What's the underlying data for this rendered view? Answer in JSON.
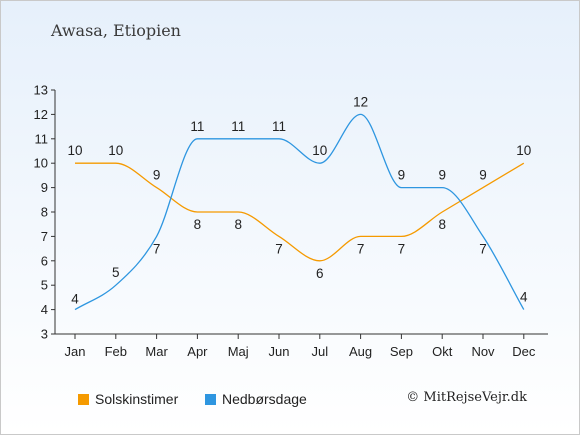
{
  "title": "Awasa, Etiopien",
  "copyright": "© MitRejseVejr.dk",
  "chart_data": {
    "type": "line",
    "categories": [
      "Jan",
      "Feb",
      "Mar",
      "Apr",
      "Maj",
      "Jun",
      "Jul",
      "Aug",
      "Sep",
      "Okt",
      "Nov",
      "Dec"
    ],
    "ylim": [
      3,
      13
    ],
    "yticks": [
      3,
      4,
      5,
      6,
      7,
      8,
      9,
      10,
      11,
      12,
      13
    ],
    "series": [
      {
        "name": "Solskinstimer",
        "color": "#f59a00",
        "values": [
          10,
          10,
          9,
          8,
          8,
          7,
          6,
          7,
          7,
          8,
          9,
          10
        ]
      },
      {
        "name": "Nedbørsdage",
        "color": "#2e96e0",
        "values": [
          4,
          5,
          7,
          11,
          11,
          11,
          10,
          12,
          9,
          9,
          7,
          4
        ]
      }
    ],
    "grid": false,
    "legend": "bottom"
  }
}
